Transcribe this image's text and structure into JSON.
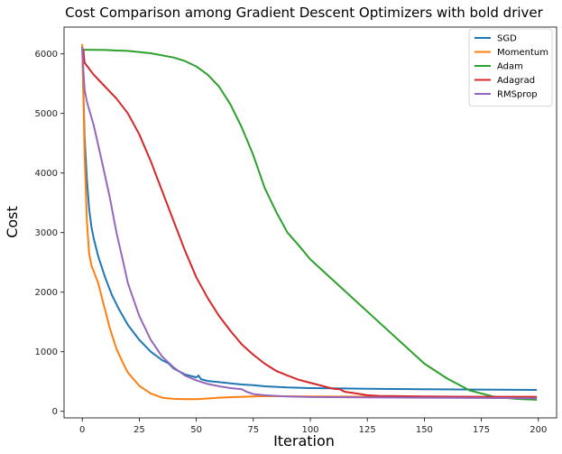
{
  "chart_data": {
    "type": "line",
    "title": "Cost Comparison among Gradient Descent Optimizers with bold driver",
    "xlabel": "Iteration",
    "ylabel": "Cost",
    "xlim": [
      -8,
      208
    ],
    "ylim": [
      -110,
      6450
    ],
    "xticks": [
      0,
      25,
      50,
      75,
      100,
      125,
      150,
      175,
      200
    ],
    "yticks": [
      0,
      1000,
      2000,
      3000,
      4000,
      5000,
      6000
    ],
    "grid": false,
    "legend_position": "top-right",
    "series": [
      {
        "name": "SGD",
        "color": "#1f77b4",
        "x": [
          0,
          1,
          2,
          3,
          4,
          5,
          7,
          10,
          13,
          16,
          20,
          25,
          30,
          35,
          38,
          40,
          45,
          50,
          51,
          52,
          55,
          60,
          65,
          70,
          75,
          80,
          90,
          100,
          125,
          150,
          175,
          199
        ],
        "y": [
          6100,
          4600,
          3900,
          3400,
          3100,
          2900,
          2600,
          2250,
          1950,
          1720,
          1450,
          1200,
          1000,
          860,
          800,
          720,
          620,
          570,
          600,
          540,
          510,
          490,
          470,
          450,
          440,
          420,
          400,
          390,
          380,
          370,
          365,
          360
        ]
      },
      {
        "name": "Momentum",
        "color": "#ff7f0e",
        "x": [
          0,
          1,
          2,
          3,
          4,
          5,
          7,
          8,
          10,
          12,
          15,
          18,
          20,
          25,
          30,
          35,
          40,
          45,
          50,
          55,
          60,
          70,
          80,
          100,
          150,
          199
        ],
        "y": [
          6150,
          4300,
          3200,
          2650,
          2450,
          2350,
          2150,
          2000,
          1700,
          1400,
          1050,
          800,
          650,
          430,
          300,
          230,
          210,
          205,
          205,
          215,
          230,
          245,
          255,
          250,
          240,
          235
        ]
      },
      {
        "name": "Adam",
        "color": "#2ca02c",
        "x": [
          0,
          10,
          20,
          30,
          40,
          45,
          50,
          55,
          60,
          65,
          70,
          75,
          80,
          85,
          90,
          95,
          100,
          110,
          120,
          130,
          140,
          150,
          160,
          170,
          180,
          190,
          199
        ],
        "y": [
          6070,
          6065,
          6050,
          6010,
          5940,
          5880,
          5790,
          5650,
          5450,
          5150,
          4760,
          4300,
          3750,
          3350,
          3000,
          2780,
          2550,
          2200,
          1850,
          1500,
          1150,
          800,
          550,
          350,
          250,
          210,
          195
        ]
      },
      {
        "name": "Adagrad",
        "color": "#d62728",
        "x": [
          0,
          0.5,
          1,
          2,
          5,
          10,
          15,
          20,
          25,
          30,
          35,
          40,
          45,
          50,
          55,
          60,
          65,
          70,
          75,
          80,
          85,
          90,
          95,
          100,
          105,
          110,
          113,
          115,
          120,
          125,
          130,
          150,
          175,
          199
        ],
        "y": [
          6100,
          6050,
          5850,
          5800,
          5650,
          5450,
          5250,
          5000,
          4650,
          4200,
          3700,
          3200,
          2700,
          2250,
          1900,
          1600,
          1350,
          1120,
          950,
          800,
          680,
          600,
          530,
          480,
          430,
          380,
          370,
          330,
          300,
          270,
          260,
          250,
          245,
          245
        ]
      },
      {
        "name": "RMSprop",
        "color": "#9467bd",
        "x": [
          0,
          0.5,
          1,
          2,
          5,
          8,
          10,
          12,
          15,
          18,
          20,
          25,
          30,
          35,
          40,
          45,
          50,
          55,
          60,
          65,
          70,
          72,
          75,
          80,
          85,
          90,
          100,
          150,
          199
        ],
        "y": [
          6100,
          5700,
          5400,
          5200,
          4800,
          4300,
          3950,
          3600,
          3000,
          2500,
          2150,
          1600,
          1200,
          920,
          740,
          600,
          520,
          460,
          420,
          390,
          370,
          330,
          290,
          270,
          260,
          250,
          240,
          230,
          220
        ]
      }
    ]
  }
}
